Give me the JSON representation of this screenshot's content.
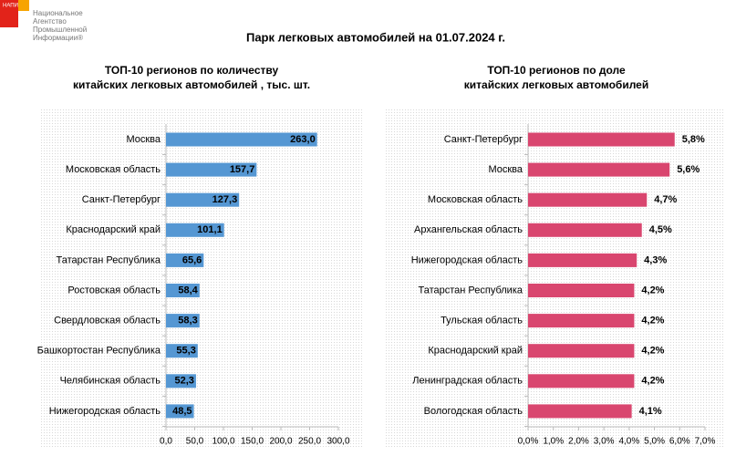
{
  "title": "Парк легковых автомобилей на 01.07.2024 г.",
  "logo": {
    "badge": "НАПИ",
    "lines": [
      "Национальное",
      "Агентство",
      "Промышленной",
      "Информации®"
    ]
  },
  "chart_data": [
    {
      "type": "barh",
      "title": [
        "ТОП-10 регионов по количеству",
        "китайских легковых автомобилей , тыс. шт."
      ],
      "categories": [
        "Москва",
        "Московская область",
        "Санкт-Петербург",
        "Краснодарский край",
        "Татарстан Республика",
        "Ростовская область",
        "Свердловская область",
        "Башкортостан Республика",
        "Челябинская область",
        "Нижегородская область"
      ],
      "values": [
        263.0,
        157.7,
        127.3,
        101.1,
        65.6,
        58.4,
        58.3,
        55.3,
        52.3,
        48.5
      ],
      "value_labels": [
        "263,0",
        "157,7",
        "127,3",
        "101,1",
        "65,6",
        "58,4",
        "58,3",
        "55,3",
        "52,3",
        "48,5"
      ],
      "color": "#5597d3",
      "label_position": "inside-end",
      "xlim": [
        0,
        300
      ],
      "xticks": [
        {
          "value": 0,
          "label": "0,0"
        },
        {
          "value": 50,
          "label": "50,0"
        },
        {
          "value": 100,
          "label": "100,0"
        },
        {
          "value": 150,
          "label": "150,0"
        },
        {
          "value": 200,
          "label": "200,0"
        },
        {
          "value": 250,
          "label": "250,0"
        },
        {
          "value": 300,
          "label": "300,0"
        }
      ]
    },
    {
      "type": "barh",
      "title": [
        "ТОП-10 регионов по доле",
        "китайских легковых автомобилей"
      ],
      "categories": [
        "Санкт-Петербург",
        "Москва",
        "Московская область",
        "Архангельская область",
        "Нижегородская область",
        "Татарстан Республика",
        "Тульская область",
        "Краснодарский край",
        "Ленинградская область",
        "Вологодская область"
      ],
      "values": [
        5.8,
        5.6,
        4.7,
        4.5,
        4.3,
        4.2,
        4.2,
        4.2,
        4.2,
        4.1
      ],
      "value_labels": [
        "5,8%",
        "5,6%",
        "4,7%",
        "4,5%",
        "4,3%",
        "4,2%",
        "4,2%",
        "4,2%",
        "4,2%",
        "4,1%"
      ],
      "color": "#d9466f",
      "label_position": "outside-end",
      "xlim": [
        0,
        7
      ],
      "xticks": [
        {
          "value": 0,
          "label": "0,0%"
        },
        {
          "value": 1,
          "label": "1,0%"
        },
        {
          "value": 2,
          "label": "2,0%"
        },
        {
          "value": 3,
          "label": "3,0%"
        },
        {
          "value": 4,
          "label": "4,0%"
        },
        {
          "value": 5,
          "label": "5,0%"
        },
        {
          "value": 6,
          "label": "6,0%"
        },
        {
          "value": 7,
          "label": "7,0%"
        }
      ]
    }
  ]
}
